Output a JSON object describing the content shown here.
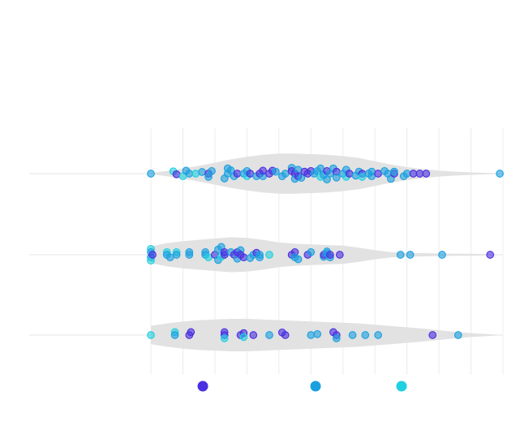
{
  "chart_data": {
    "type": "scatter",
    "title": "",
    "xlabel": "",
    "ylabel": "",
    "grid": true,
    "legend_position": "bottom",
    "xlim": [
      0,
      11
    ],
    "series_colors": [
      "#4a2fe0",
      "#1aa0e0",
      "#1fd0e0"
    ],
    "groups": [
      {
        "category_index": 0,
        "violin": {
          "x": [
            0,
            0.5,
            1,
            1.5,
            2,
            2.5,
            3,
            3.5,
            4,
            4.5,
            5,
            5.5,
            6,
            6.5,
            7,
            7.5,
            8,
            8.5,
            9,
            9.5,
            10,
            10.5,
            10.8
          ],
          "density": [
            0.02,
            0.08,
            0.16,
            0.24,
            0.34,
            0.44,
            0.52,
            0.58,
            0.62,
            0.62,
            0.6,
            0.58,
            0.54,
            0.48,
            0.38,
            0.28,
            0.2,
            0.14,
            0.09,
            0.06,
            0.04,
            0.02,
            0.01
          ]
        },
        "points": [
          {
            "x": 0.0,
            "y": 0.0,
            "s": 1
          },
          {
            "x": 0.7,
            "y": 0.07,
            "s": 2
          },
          {
            "x": 0.8,
            "y": -0.02,
            "s": 0
          },
          {
            "x": 1.0,
            "y": -0.08,
            "s": 2
          },
          {
            "x": 1.1,
            "y": 0.09,
            "s": 1
          },
          {
            "x": 1.2,
            "y": 0.0,
            "s": 1
          },
          {
            "x": 1.4,
            "y": 0.0,
            "s": 2
          },
          {
            "x": 1.6,
            "y": 0.05,
            "s": 1
          },
          {
            "x": 1.8,
            "y": 0.0,
            "s": 0
          },
          {
            "x": 1.8,
            "y": -0.1,
            "s": 1
          },
          {
            "x": 1.9,
            "y": 0.08,
            "s": 1
          },
          {
            "x": 2.3,
            "y": -0.15,
            "s": 1
          },
          {
            "x": 2.4,
            "y": 0.0,
            "s": 1
          },
          {
            "x": 2.4,
            "y": 0.16,
            "s": 1
          },
          {
            "x": 2.5,
            "y": 0.1,
            "s": 1
          },
          {
            "x": 2.6,
            "y": -0.08,
            "s": 1
          },
          {
            "x": 2.7,
            "y": 0.0,
            "s": 0
          },
          {
            "x": 2.9,
            "y": 0.0,
            "s": 1
          },
          {
            "x": 3.0,
            "y": -0.08,
            "s": 2
          },
          {
            "x": 3.0,
            "y": 0.08,
            "s": 1
          },
          {
            "x": 3.1,
            "y": 0.0,
            "s": 0
          },
          {
            "x": 3.3,
            "y": -0.08,
            "s": 1
          },
          {
            "x": 3.4,
            "y": 0.0,
            "s": 0
          },
          {
            "x": 3.5,
            "y": -0.08,
            "s": 1
          },
          {
            "x": 3.5,
            "y": 0.09,
            "s": 0
          },
          {
            "x": 3.7,
            "y": 0.0,
            "s": 0
          },
          {
            "x": 3.8,
            "y": 0.09,
            "s": 0
          },
          {
            "x": 3.9,
            "y": 0.06,
            "s": 1
          },
          {
            "x": 4.1,
            "y": -0.08,
            "s": 1
          },
          {
            "x": 4.2,
            "y": 0.0,
            "s": 1
          },
          {
            "x": 4.4,
            "y": 0.18,
            "s": 1
          },
          {
            "x": 4.4,
            "y": 0.08,
            "s": 0
          },
          {
            "x": 4.5,
            "y": 0.0,
            "s": 0
          },
          {
            "x": 4.5,
            "y": -0.16,
            "s": 1
          },
          {
            "x": 4.6,
            "y": 0.12,
            "s": 1
          },
          {
            "x": 4.6,
            "y": -0.08,
            "s": 0
          },
          {
            "x": 4.7,
            "y": -0.13,
            "s": 1
          },
          {
            "x": 4.8,
            "y": 0.06,
            "s": 0
          },
          {
            "x": 4.9,
            "y": 0.0,
            "s": 0
          },
          {
            "x": 5.0,
            "y": 0.08,
            "s": 0
          },
          {
            "x": 5.1,
            "y": 0.0,
            "s": 1
          },
          {
            "x": 5.2,
            "y": 0.08,
            "s": 1
          },
          {
            "x": 5.3,
            "y": 0.16,
            "s": 1
          },
          {
            "x": 5.3,
            "y": -0.1,
            "s": 2
          },
          {
            "x": 5.4,
            "y": -0.04,
            "s": 1
          },
          {
            "x": 5.5,
            "y": 0.08,
            "s": 0
          },
          {
            "x": 5.5,
            "y": -0.18,
            "s": 1
          },
          {
            "x": 5.6,
            "y": 0.0,
            "s": 1
          },
          {
            "x": 5.7,
            "y": 0.16,
            "s": 1
          },
          {
            "x": 5.8,
            "y": 0.06,
            "s": 0
          },
          {
            "x": 5.8,
            "y": -0.12,
            "s": 1
          },
          {
            "x": 6.0,
            "y": 0.0,
            "s": 1
          },
          {
            "x": 6.1,
            "y": 0.12,
            "s": 1
          },
          {
            "x": 6.1,
            "y": -0.1,
            "s": 2
          },
          {
            "x": 6.2,
            "y": 0.0,
            "s": 0
          },
          {
            "x": 6.4,
            "y": -0.06,
            "s": 1
          },
          {
            "x": 6.5,
            "y": 0.06,
            "s": 1
          },
          {
            "x": 6.6,
            "y": 0.0,
            "s": 0
          },
          {
            "x": 6.6,
            "y": -0.1,
            "s": 2
          },
          {
            "x": 6.8,
            "y": 0.0,
            "s": 1
          },
          {
            "x": 6.9,
            "y": 0.06,
            "s": 1
          },
          {
            "x": 6.9,
            "y": -0.08,
            "s": 1
          },
          {
            "x": 7.1,
            "y": 0.0,
            "s": 0
          },
          {
            "x": 7.3,
            "y": 0.08,
            "s": 1
          },
          {
            "x": 7.4,
            "y": 0.0,
            "s": 1
          },
          {
            "x": 7.5,
            "y": -0.16,
            "s": 1
          },
          {
            "x": 7.6,
            "y": 0.0,
            "s": 0
          },
          {
            "x": 7.6,
            "y": 0.06,
            "s": 1
          },
          {
            "x": 7.9,
            "y": -0.08,
            "s": 1
          },
          {
            "x": 8.0,
            "y": 0.0,
            "s": 1
          },
          {
            "x": 8.2,
            "y": 0.0,
            "s": 0
          },
          {
            "x": 8.4,
            "y": 0.0,
            "s": 0
          },
          {
            "x": 8.6,
            "y": 0.0,
            "s": 0
          },
          {
            "x": 10.9,
            "y": 0.0,
            "s": 1
          }
        ]
      },
      {
        "category_index": 1,
        "violin": {
          "x": [
            0,
            0.5,
            1,
            1.5,
            2,
            2.5,
            3,
            3.5,
            4,
            4.5,
            5,
            5.5,
            6,
            6.5,
            7,
            7.5,
            8,
            8.5,
            9,
            9.5,
            10,
            10.5,
            10.8
          ],
          "density": [
            0.26,
            0.36,
            0.42,
            0.46,
            0.5,
            0.54,
            0.52,
            0.46,
            0.38,
            0.34,
            0.32,
            0.3,
            0.28,
            0.22,
            0.14,
            0.08,
            0.06,
            0.05,
            0.04,
            0.03,
            0.03,
            0.02,
            0.01
          ]
        },
        "points": [
          {
            "x": 0.0,
            "y": 0.18,
            "s": 2
          },
          {
            "x": 0.0,
            "y": 0.08,
            "s": 1
          },
          {
            "x": 0.0,
            "y": -0.08,
            "s": 1
          },
          {
            "x": 0.0,
            "y": -0.18,
            "s": 2
          },
          {
            "x": 0.05,
            "y": 0.0,
            "s": 0
          },
          {
            "x": 0.5,
            "y": 0.08,
            "s": 2
          },
          {
            "x": 0.5,
            "y": 0.0,
            "s": 1
          },
          {
            "x": 0.6,
            "y": -0.08,
            "s": 1
          },
          {
            "x": 0.8,
            "y": 0.08,
            "s": 2
          },
          {
            "x": 0.8,
            "y": 0.0,
            "s": 1
          },
          {
            "x": 1.2,
            "y": 0.08,
            "s": 1
          },
          {
            "x": 1.2,
            "y": 0.0,
            "s": 1
          },
          {
            "x": 1.7,
            "y": 0.08,
            "s": 1
          },
          {
            "x": 1.7,
            "y": 0.0,
            "s": 1
          },
          {
            "x": 1.8,
            "y": -0.08,
            "s": 2
          },
          {
            "x": 2.0,
            "y": 0.0,
            "s": 0
          },
          {
            "x": 2.1,
            "y": -0.16,
            "s": 1
          },
          {
            "x": 2.1,
            "y": 0.16,
            "s": 1
          },
          {
            "x": 2.2,
            "y": 0.24,
            "s": 1
          },
          {
            "x": 2.2,
            "y": -0.06,
            "s": 2
          },
          {
            "x": 2.3,
            "y": 0.08,
            "s": 0
          },
          {
            "x": 2.3,
            "y": 0.0,
            "s": 0
          },
          {
            "x": 2.5,
            "y": 0.08,
            "s": 1
          },
          {
            "x": 2.6,
            "y": 0.0,
            "s": 0
          },
          {
            "x": 2.7,
            "y": -0.12,
            "s": 1
          },
          {
            "x": 2.7,
            "y": 0.08,
            "s": 0
          },
          {
            "x": 2.8,
            "y": 0.14,
            "s": 1
          },
          {
            "x": 2.8,
            "y": 0.0,
            "s": 0
          },
          {
            "x": 2.9,
            "y": -0.08,
            "s": 0
          },
          {
            "x": 3.1,
            "y": -0.1,
            "s": 1
          },
          {
            "x": 3.2,
            "y": 0.0,
            "s": 1
          },
          {
            "x": 3.3,
            "y": 0.06,
            "s": 0
          },
          {
            "x": 3.4,
            "y": 0.0,
            "s": 1
          },
          {
            "x": 3.4,
            "y": -0.08,
            "s": 1
          },
          {
            "x": 3.7,
            "y": 0.0,
            "s": 2
          },
          {
            "x": 4.4,
            "y": 0.0,
            "s": 0
          },
          {
            "x": 4.5,
            "y": 0.08,
            "s": 0
          },
          {
            "x": 4.5,
            "y": -0.08,
            "s": 1
          },
          {
            "x": 4.6,
            "y": -0.14,
            "s": 1
          },
          {
            "x": 4.9,
            "y": 0.0,
            "s": 0
          },
          {
            "x": 5.0,
            "y": 0.08,
            "s": 1
          },
          {
            "x": 5.4,
            "y": -0.06,
            "s": 1
          },
          {
            "x": 5.4,
            "y": 0.0,
            "s": 0
          },
          {
            "x": 5.5,
            "y": 0.1,
            "s": 1
          },
          {
            "x": 5.5,
            "y": 0.04,
            "s": 1
          },
          {
            "x": 5.6,
            "y": -0.08,
            "s": 1
          },
          {
            "x": 5.6,
            "y": 0.0,
            "s": 0
          },
          {
            "x": 5.9,
            "y": 0.0,
            "s": 0
          },
          {
            "x": 7.8,
            "y": 0.0,
            "s": 1
          },
          {
            "x": 8.1,
            "y": 0.0,
            "s": 1
          },
          {
            "x": 9.1,
            "y": 0.0,
            "s": 1
          },
          {
            "x": 10.6,
            "y": 0.0,
            "s": 0
          }
        ]
      },
      {
        "category_index": 2,
        "violin": {
          "x": [
            0,
            0.5,
            1,
            1.5,
            2,
            2.5,
            3,
            3.5,
            4,
            4.5,
            5,
            5.5,
            6,
            6.5,
            7,
            7.5,
            8,
            8.5,
            9,
            9.5,
            10,
            10.5,
            10.8
          ],
          "density": [
            0.28,
            0.36,
            0.42,
            0.46,
            0.48,
            0.5,
            0.5,
            0.48,
            0.46,
            0.44,
            0.42,
            0.4,
            0.38,
            0.36,
            0.32,
            0.28,
            0.24,
            0.2,
            0.15,
            0.1,
            0.06,
            0.03,
            0.01
          ]
        },
        "points": [
          {
            "x": 0.0,
            "y": 0.0,
            "s": 2
          },
          {
            "x": 0.75,
            "y": 0.09,
            "s": 2
          },
          {
            "x": 0.75,
            "y": 0.0,
            "s": 1
          },
          {
            "x": 1.2,
            "y": 0.0,
            "s": 0
          },
          {
            "x": 1.25,
            "y": 0.09,
            "s": 0
          },
          {
            "x": 2.3,
            "y": 0.09,
            "s": 0
          },
          {
            "x": 2.3,
            "y": 0.0,
            "s": 0
          },
          {
            "x": 2.3,
            "y": -0.1,
            "s": 2
          },
          {
            "x": 2.8,
            "y": 0.0,
            "s": 0
          },
          {
            "x": 2.9,
            "y": 0.06,
            "s": 0
          },
          {
            "x": 2.9,
            "y": -0.06,
            "s": 2
          },
          {
            "x": 3.2,
            "y": 0.0,
            "s": 0
          },
          {
            "x": 3.7,
            "y": 0.0,
            "s": 1
          },
          {
            "x": 4.1,
            "y": 0.08,
            "s": 0
          },
          {
            "x": 4.2,
            "y": 0.0,
            "s": 0
          },
          {
            "x": 5.0,
            "y": 0.0,
            "s": 1
          },
          {
            "x": 5.2,
            "y": 0.03,
            "s": 1
          },
          {
            "x": 5.7,
            "y": 0.09,
            "s": 0
          },
          {
            "x": 5.8,
            "y": 0.0,
            "s": 0
          },
          {
            "x": 5.8,
            "y": -0.1,
            "s": 1
          },
          {
            "x": 6.3,
            "y": 0.0,
            "s": 1
          },
          {
            "x": 6.7,
            "y": 0.0,
            "s": 1
          },
          {
            "x": 7.1,
            "y": 0.0,
            "s": 1
          },
          {
            "x": 8.8,
            "y": 0.0,
            "s": 0
          },
          {
            "x": 9.6,
            "y": 0.0,
            "s": 1
          }
        ]
      }
    ],
    "legend": [
      {
        "color": "#4a2fe0",
        "label": ""
      },
      {
        "color": "#1aa0e0",
        "label": ""
      },
      {
        "color": "#1fd0e0",
        "label": ""
      }
    ]
  }
}
